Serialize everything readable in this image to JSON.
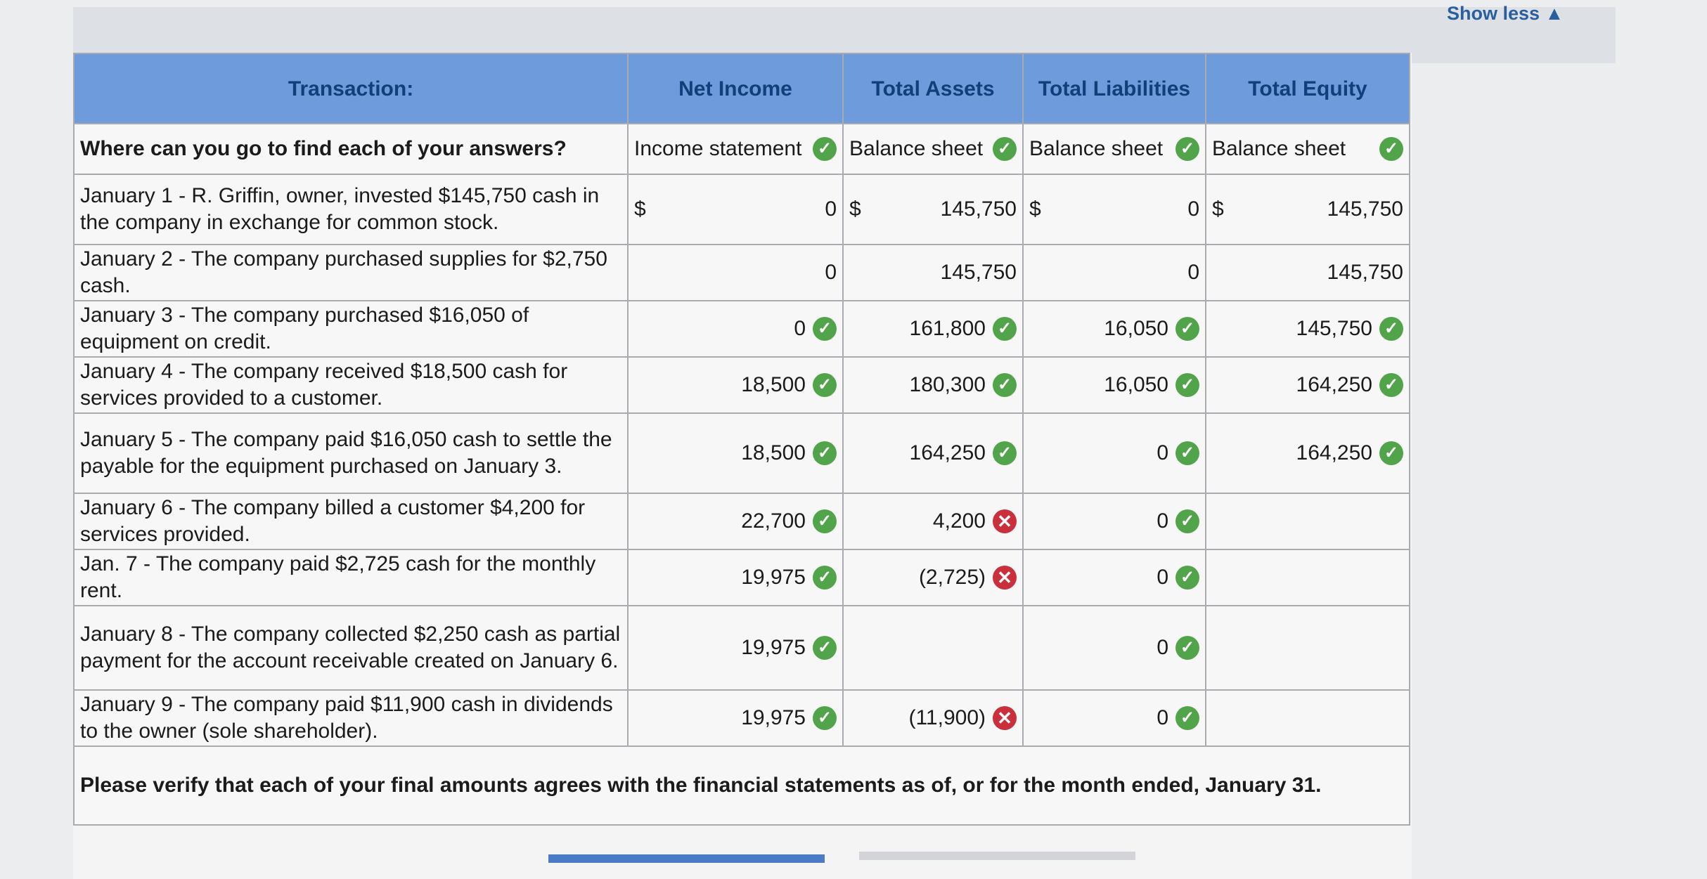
{
  "top": {
    "show_less": "Show less ▲"
  },
  "headers": [
    "Transaction:",
    "Net Income",
    "Total Assets",
    "Total Liabilities",
    "Total Equity"
  ],
  "where_row": {
    "question": "Where can you go to find each of your answers?",
    "sources": [
      "Income statement",
      "Balance sheet",
      "Balance sheet",
      "Balance sheet"
    ]
  },
  "rows": [
    {
      "desc": "January 1 - R. Griffin, owner, invested $145,750 cash in the company in exchange for common stock.",
      "cells": [
        {
          "dollar": "$",
          "value": "0",
          "mark": ""
        },
        {
          "dollar": "$",
          "value": "145,750",
          "mark": ""
        },
        {
          "dollar": "$",
          "value": "0",
          "mark": ""
        },
        {
          "dollar": "$",
          "value": "145,750",
          "mark": ""
        }
      ]
    },
    {
      "desc": "January 2 - The company purchased supplies for $2,750 cash.",
      "cells": [
        {
          "dollar": "",
          "value": "0",
          "mark": ""
        },
        {
          "dollar": "",
          "value": "145,750",
          "mark": ""
        },
        {
          "dollar": "",
          "value": "0",
          "mark": ""
        },
        {
          "dollar": "",
          "value": "145,750",
          "mark": ""
        }
      ]
    },
    {
      "desc": "January 3 - The company purchased $16,050 of equipment on credit.",
      "cells": [
        {
          "dollar": "",
          "value": "0",
          "mark": "ok"
        },
        {
          "dollar": "",
          "value": "161,800",
          "mark": "ok"
        },
        {
          "dollar": "",
          "value": "16,050",
          "mark": "ok"
        },
        {
          "dollar": "",
          "value": "145,750",
          "mark": "ok"
        }
      ]
    },
    {
      "desc": "January 4 - The company received $18,500 cash for services provided to a customer.",
      "cells": [
        {
          "dollar": "",
          "value": "18,500",
          "mark": "ok"
        },
        {
          "dollar": "",
          "value": "180,300",
          "mark": "ok"
        },
        {
          "dollar": "",
          "value": "16,050",
          "mark": "ok"
        },
        {
          "dollar": "",
          "value": "164,250",
          "mark": "ok"
        }
      ]
    },
    {
      "desc": "January 5 - The company paid $16,050 cash to settle the payable for the equipment purchased on January 3.",
      "cells": [
        {
          "dollar": "",
          "value": "18,500",
          "mark": "ok"
        },
        {
          "dollar": "",
          "value": "164,250",
          "mark": "ok"
        },
        {
          "dollar": "",
          "value": "0",
          "mark": "ok"
        },
        {
          "dollar": "",
          "value": "164,250",
          "mark": "ok"
        }
      ]
    },
    {
      "desc": "January 6 - The company billed a customer $4,200 for services provided.",
      "cells": [
        {
          "dollar": "",
          "value": "22,700",
          "mark": "ok"
        },
        {
          "dollar": "",
          "value": "4,200",
          "mark": "bad"
        },
        {
          "dollar": "",
          "value": "0",
          "mark": "ok"
        },
        {
          "dollar": "",
          "value": "",
          "mark": ""
        }
      ]
    },
    {
      "desc": "Jan. 7 - The company paid $2,725 cash for the monthly rent.",
      "cells": [
        {
          "dollar": "",
          "value": "19,975",
          "mark": "ok"
        },
        {
          "dollar": "",
          "value": "(2,725)",
          "mark": "bad"
        },
        {
          "dollar": "",
          "value": "0",
          "mark": "ok"
        },
        {
          "dollar": "",
          "value": "",
          "mark": ""
        }
      ]
    },
    {
      "desc": "January 8 - The company collected $2,250 cash as partial payment for the account receivable created on January 6.",
      "cells": [
        {
          "dollar": "",
          "value": "19,975",
          "mark": "ok"
        },
        {
          "dollar": "",
          "value": "",
          "mark": ""
        },
        {
          "dollar": "",
          "value": "0",
          "mark": "ok"
        },
        {
          "dollar": "",
          "value": "",
          "mark": ""
        }
      ]
    },
    {
      "desc": "January 9 - The company paid $11,900 cash in dividends to the owner (sole shareholder).",
      "cells": [
        {
          "dollar": "",
          "value": "19,975",
          "mark": "ok"
        },
        {
          "dollar": "",
          "value": "(11,900)",
          "mark": "bad"
        },
        {
          "dollar": "",
          "value": "0",
          "mark": "ok"
        },
        {
          "dollar": "",
          "value": "",
          "mark": ""
        }
      ]
    }
  ],
  "note": "Please verify that each of your final amounts agrees with the financial statements as of, or for the month ended, January 31.",
  "marks": {
    "ok": "✓",
    "bad": "✕"
  },
  "colors": {
    "header": "#6d9bdc",
    "ok": "#52a44a",
    "bad": "#c9303c"
  }
}
